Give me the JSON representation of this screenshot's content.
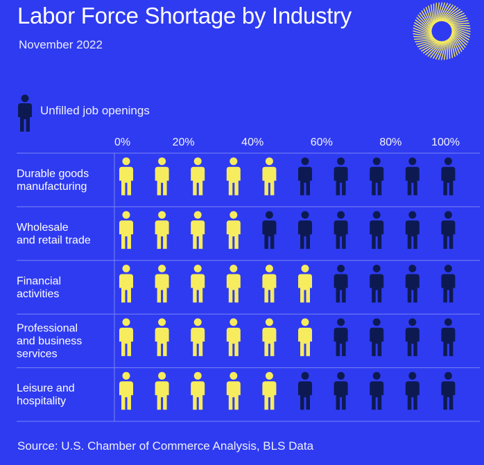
{
  "title": "Labor Force Shortage by Industry",
  "subtitle": "November 2022",
  "legend": {
    "label": "Unfilled job openings",
    "icon": "person-icon"
  },
  "source": "Source: U.S. Chamber of Commerce Analysis, BLS Data",
  "colors": {
    "background": "#2f3bf0",
    "filled": "#f6ec5e",
    "unfilled": "#0d1a52",
    "grid": "#7a84f5",
    "text": "#ffffff"
  },
  "chart_data": {
    "type": "pictogram",
    "x_ticks": [
      "0%",
      "20%",
      "40%",
      "60%",
      "80%",
      "100%"
    ],
    "xlim": [
      0,
      100
    ],
    "icons_per_row": 10,
    "unit_percent": 10,
    "categories": [
      "Durable goods\nmanufacturing",
      "Wholesale\nand retail trade",
      "Financial\nactivities",
      "Professional\nand business\nservices",
      "Leisure and\nhospitality"
    ],
    "series": [
      {
        "name": "",
        "color": "#f6ec5e",
        "values": [
          50,
          40,
          60,
          60,
          50
        ]
      },
      {
        "name": "Unfilled job openings",
        "color": "#0d1a52",
        "values": [
          50,
          60,
          40,
          40,
          50
        ]
      }
    ]
  }
}
